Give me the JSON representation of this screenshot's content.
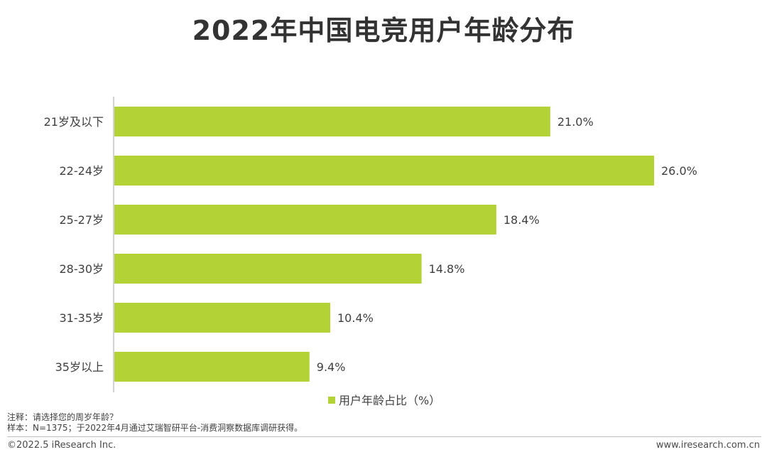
{
  "chart_data": {
    "type": "bar",
    "orientation": "horizontal",
    "title": "2022年中国电竞用户年龄分布",
    "categories": [
      "21岁及以下",
      "22-24岁",
      "25-27岁",
      "28-30岁",
      "31-35岁",
      "35岁以上"
    ],
    "series": [
      {
        "name": "用户年龄占比（%）",
        "values": [
          21.0,
          26.0,
          18.4,
          14.8,
          10.4,
          9.4
        ],
        "color": "#b2d235"
      }
    ],
    "value_labels": [
      "21.0%",
      "26.0%",
      "18.4%",
      "14.8%",
      "10.4%",
      "9.4%"
    ],
    "xlim": [
      0,
      26.0
    ],
    "legend_position": "bottom-center",
    "grid": false
  },
  "notes": {
    "line1": "注释：请选择您的周岁年龄？",
    "line2": "样本：N=1375；于2022年4月通过艾瑞智研平台-消费洞察数据库调研获得。"
  },
  "footer": {
    "left": "©2022.5 iResearch Inc.",
    "right": "www.iresearch.com.cn"
  },
  "colors": {
    "bar": "#b2d235",
    "axis": "#a6a6a6",
    "text": "#404040"
  }
}
